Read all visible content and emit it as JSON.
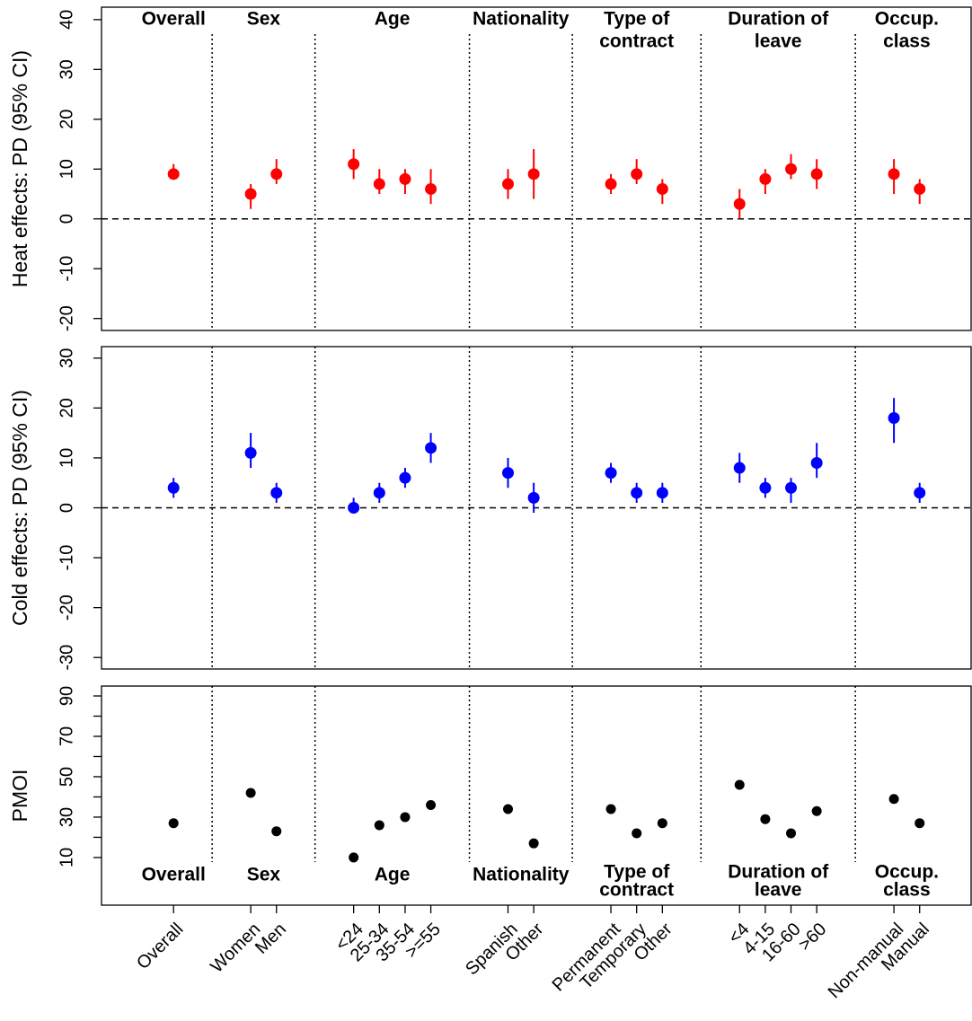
{
  "chart_data": [
    {
      "type": "errorbar",
      "y_label": "Heat effects: PD (95% CI)",
      "x": [
        1,
        4,
        5,
        8,
        9,
        10,
        11,
        14,
        15,
        18,
        19,
        20,
        23,
        24,
        25,
        26,
        29,
        30
      ],
      "xlim": [
        -1.8,
        32
      ],
      "dividers": [
        2.5,
        6.5,
        12.5,
        16.5,
        21.5,
        27.5
      ],
      "groups": [
        [
          "Overall"
        ],
        [
          "Sex"
        ],
        [
          "Age"
        ],
        [
          "Nationality"
        ],
        [
          "Type of",
          "contract"
        ],
        [
          "Duration of",
          "leave"
        ],
        [
          "Occup.",
          "class"
        ]
      ],
      "groups_position": "top",
      "ylim": [
        -22.4,
        42.5
      ],
      "yticks": [
        -20,
        -10,
        0,
        10,
        20,
        30,
        40
      ],
      "hline": 0,
      "series": [
        {
          "color": "#ff0000",
          "values": [
            9,
            5,
            9,
            11,
            7,
            8,
            6,
            7,
            9,
            7,
            9,
            6,
            3,
            8,
            10,
            9,
            9,
            6
          ],
          "lower": [
            8,
            2,
            7,
            8,
            5,
            5,
            3,
            4,
            4,
            5,
            7,
            3,
            0,
            5,
            8,
            6,
            5,
            3
          ],
          "upper": [
            11,
            7,
            12,
            14,
            10,
            10,
            10,
            10,
            14,
            9,
            12,
            8,
            6,
            10,
            13,
            12,
            12,
            8
          ]
        }
      ]
    },
    {
      "type": "errorbar",
      "y_label": "Cold effects: PD (95% CI)",
      "x": [
        1,
        4,
        5,
        8,
        9,
        10,
        11,
        14,
        15,
        18,
        19,
        20,
        23,
        24,
        25,
        26,
        29,
        30
      ],
      "xlim": [
        -1.8,
        32
      ],
      "dividers": [
        2.5,
        6.5,
        12.5,
        16.5,
        21.5,
        27.5
      ],
      "ylim": [
        -32.3,
        32.3
      ],
      "yticks": [
        -30,
        -20,
        -10,
        0,
        10,
        20,
        30
      ],
      "hline": 0,
      "series": [
        {
          "color": "#0000ff",
          "values": [
            4,
            11,
            3,
            0,
            3,
            6,
            12,
            7,
            2,
            7,
            3,
            3,
            8,
            4,
            4,
            9,
            18,
            3
          ],
          "lower": [
            2,
            8,
            1,
            -1,
            1,
            4,
            9,
            4,
            -1,
            5,
            1,
            1,
            5,
            2,
            1,
            6,
            13,
            1
          ],
          "upper": [
            6,
            15,
            5,
            2,
            5,
            8,
            15,
            10,
            5,
            9,
            5,
            5,
            11,
            6,
            6,
            13,
            22,
            5
          ]
        }
      ]
    },
    {
      "type": "scatter",
      "y_label": "PMOI",
      "x": [
        1,
        4,
        5,
        8,
        9,
        10,
        11,
        14,
        15,
        18,
        19,
        20,
        23,
        24,
        25,
        26,
        29,
        30
      ],
      "categories": [
        "Overall",
        "Women",
        "Men",
        "<24",
        "25-34",
        "35-54",
        ">=55",
        "Spanish",
        "Other",
        "Permanent",
        "Temporary",
        "Other",
        "<4",
        "4-15",
        "16-60",
        ">60",
        "Non-manual",
        "Manual"
      ],
      "xlim": [
        -1.8,
        32
      ],
      "dividers": [
        2.5,
        6.5,
        12.5,
        16.5,
        21.5,
        27.5
      ],
      "groups": [
        [
          "Overall"
        ],
        [
          "Sex"
        ],
        [
          "Age"
        ],
        [
          "Nationality"
        ],
        [
          "Type of",
          "contract"
        ],
        [
          "Duration of",
          "leave"
        ],
        [
          "Occup.",
          "class"
        ]
      ],
      "groups_position": "bottom",
      "ylim": [
        -13.6,
        94.9
      ],
      "yticks": [
        10,
        30,
        50,
        70,
        90
      ],
      "yminor": [
        20,
        40,
        60,
        80
      ],
      "series": [
        {
          "color": "#000000",
          "values": [
            27,
            42,
            23,
            10,
            26,
            30,
            36,
            34,
            17,
            34,
            22,
            27,
            46,
            29,
            22,
            33,
            39,
            27
          ]
        }
      ]
    }
  ]
}
